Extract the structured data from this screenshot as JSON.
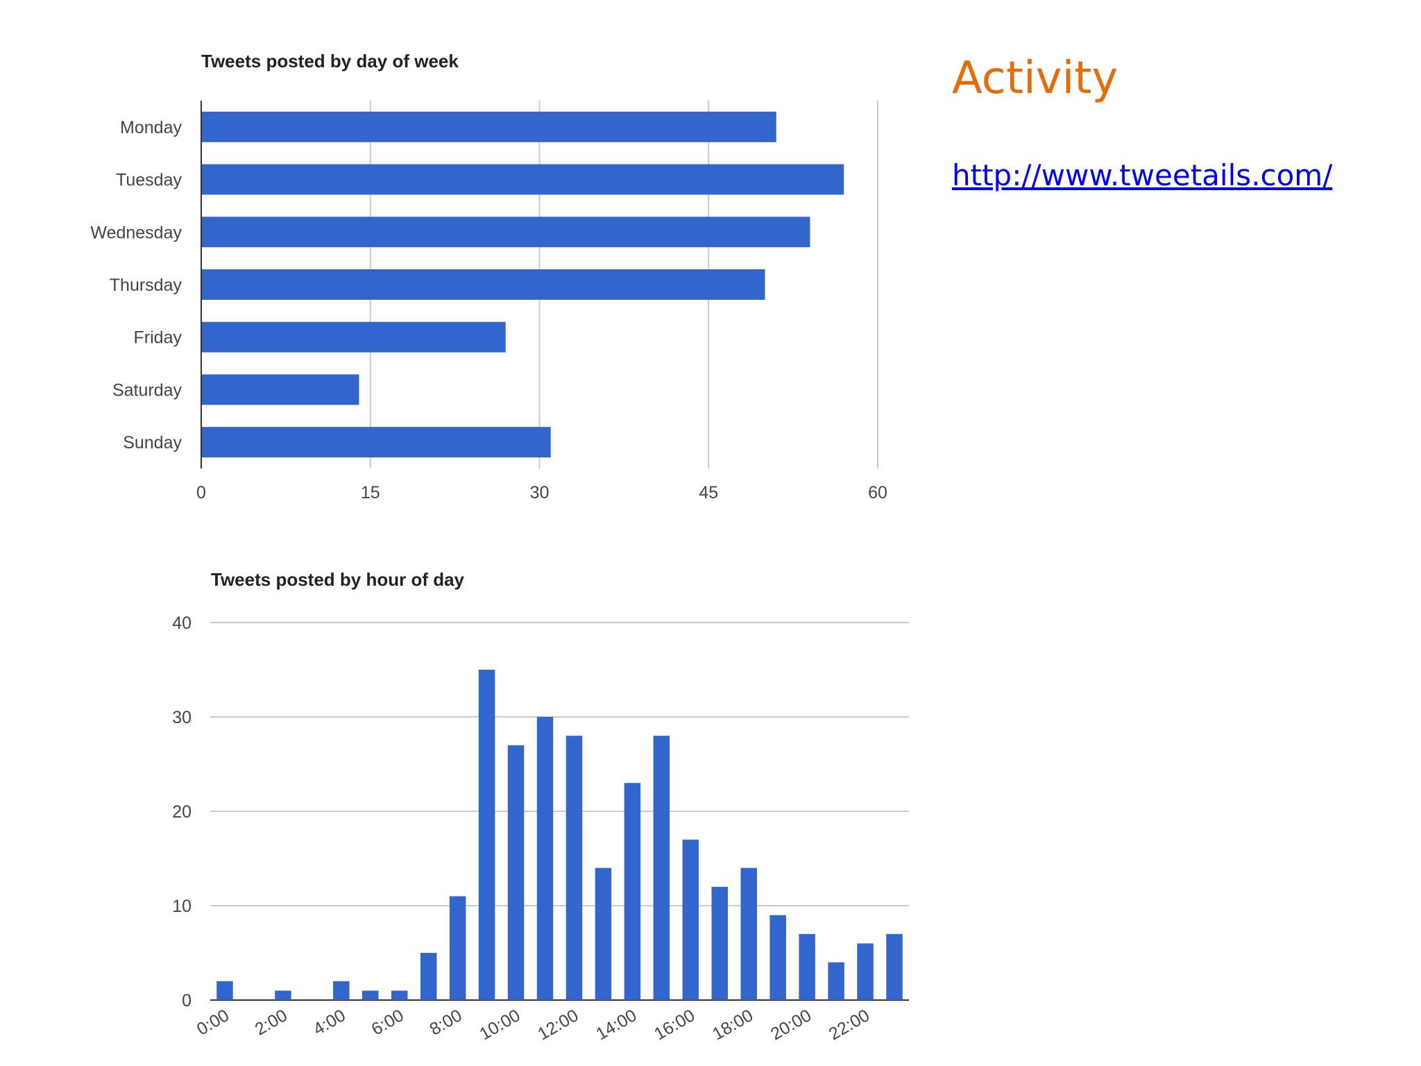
{
  "slide": {
    "title": "Activity",
    "link_text": "http://www.tweetails.com/"
  },
  "colors": {
    "title": "#e46c0a",
    "link": "#0000ee",
    "bar": "#3366cc"
  },
  "chart_data": [
    {
      "type": "bar",
      "orientation": "horizontal",
      "title": "Tweets posted by day of week",
      "categories": [
        "Monday",
        "Tuesday",
        "Wednesday",
        "Thursday",
        "Friday",
        "Saturday",
        "Sunday"
      ],
      "values": [
        51,
        57,
        54,
        50,
        27,
        14,
        31
      ],
      "xlim": [
        0,
        60
      ],
      "xticks": [
        "0",
        "15",
        "30",
        "45",
        "60"
      ],
      "grid": true
    },
    {
      "type": "bar",
      "orientation": "vertical",
      "title": "Tweets posted by hour of day",
      "categories": [
        "0:00",
        "1:00",
        "2:00",
        "3:00",
        "4:00",
        "5:00",
        "6:00",
        "7:00",
        "8:00",
        "9:00",
        "10:00",
        "11:00",
        "12:00",
        "13:00",
        "14:00",
        "15:00",
        "16:00",
        "17:00",
        "18:00",
        "19:00",
        "20:00",
        "21:00",
        "22:00",
        "23:00"
      ],
      "x_tick_labels": [
        "0:00",
        "2:00",
        "4:00",
        "6:00",
        "8:00",
        "10:00",
        "12:00",
        "14:00",
        "16:00",
        "18:00",
        "20:00",
        "22:00"
      ],
      "values": [
        2,
        0,
        1,
        0,
        2,
        1,
        1,
        5,
        11,
        35,
        27,
        30,
        28,
        14,
        23,
        28,
        17,
        12,
        14,
        9,
        7,
        4,
        6,
        7
      ],
      "ylim": [
        0,
        40
      ],
      "yticks": [
        "0",
        "10",
        "20",
        "30",
        "40"
      ],
      "grid": true
    }
  ]
}
